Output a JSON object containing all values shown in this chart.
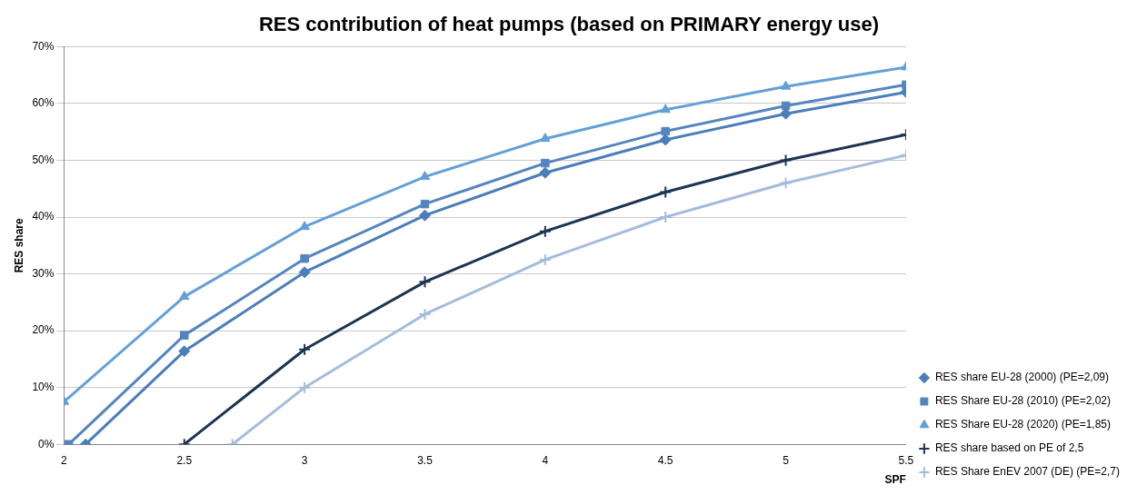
{
  "chart_data": {
    "type": "line",
    "title": "RES contribution of heat pumps (based on PRIMARY energy use)",
    "xlabel": "SPF",
    "ylabel": "RES share",
    "x": [
      2,
      2.5,
      3,
      3.5,
      4,
      4.5,
      5,
      5.5
    ],
    "series": [
      {
        "name": "RES share EU-28 (2000) (PE=2,09)",
        "color": "#4a7ebb",
        "marker": "diamond",
        "x": [
          2.09,
          2.5,
          3,
          3.5,
          4,
          4.5,
          5,
          5.5
        ],
        "values": [
          0,
          16.4,
          30.3,
          40.3,
          47.8,
          53.6,
          58.2,
          62.0
        ]
      },
      {
        "name": "RES Share EU-28 (2010) (PE=2,02)",
        "color": "#5585c0",
        "marker": "square",
        "x": [
          2.02,
          2.5,
          3,
          3.5,
          4,
          4.5,
          5,
          5.5
        ],
        "values": [
          0,
          19.2,
          32.7,
          42.3,
          49.5,
          55.1,
          59.6,
          63.3
        ]
      },
      {
        "name": "RES Share EU-28 (2020) (PE=1,85)",
        "color": "#64a0d8",
        "marker": "triangle",
        "values": [
          7.5,
          26.0,
          38.3,
          47.1,
          53.8,
          58.9,
          63.0,
          66.4
        ]
      },
      {
        "name": "RES share based on PE of 2,5",
        "color": "#1c3552",
        "marker": "cross",
        "x": [
          2.5,
          3,
          3.5,
          4,
          4.5,
          5,
          5.5
        ],
        "values": [
          0,
          16.7,
          28.6,
          37.5,
          44.4,
          50.0,
          54.5
        ]
      },
      {
        "name": "RES Share EnEV 2007 (DE) (PE=2,7)",
        "color": "#a4bcdc",
        "marker": "cross",
        "x": [
          2.7,
          3,
          3.5,
          4,
          4.5,
          5,
          5.5
        ],
        "values": [
          0,
          10.0,
          22.9,
          32.5,
          40.0,
          46.0,
          50.9
        ]
      }
    ],
    "xlim": [
      2,
      5.5
    ],
    "xticks": [
      2,
      2.5,
      3,
      3.5,
      4,
      4.5,
      5,
      5.5
    ],
    "ylim": [
      0,
      70
    ],
    "yticks": [
      {
        "value": 0,
        "label": "0%"
      },
      {
        "value": 10,
        "label": "10%"
      },
      {
        "value": 20,
        "label": "20%"
      },
      {
        "value": 30,
        "label": "30%"
      },
      {
        "value": 40,
        "label": "40%"
      },
      {
        "value": 50,
        "label": "50%"
      },
      {
        "value": 60,
        "label": "60%"
      },
      {
        "value": 70,
        "label": "70%"
      }
    ],
    "grid": "y",
    "legend": "right"
  }
}
